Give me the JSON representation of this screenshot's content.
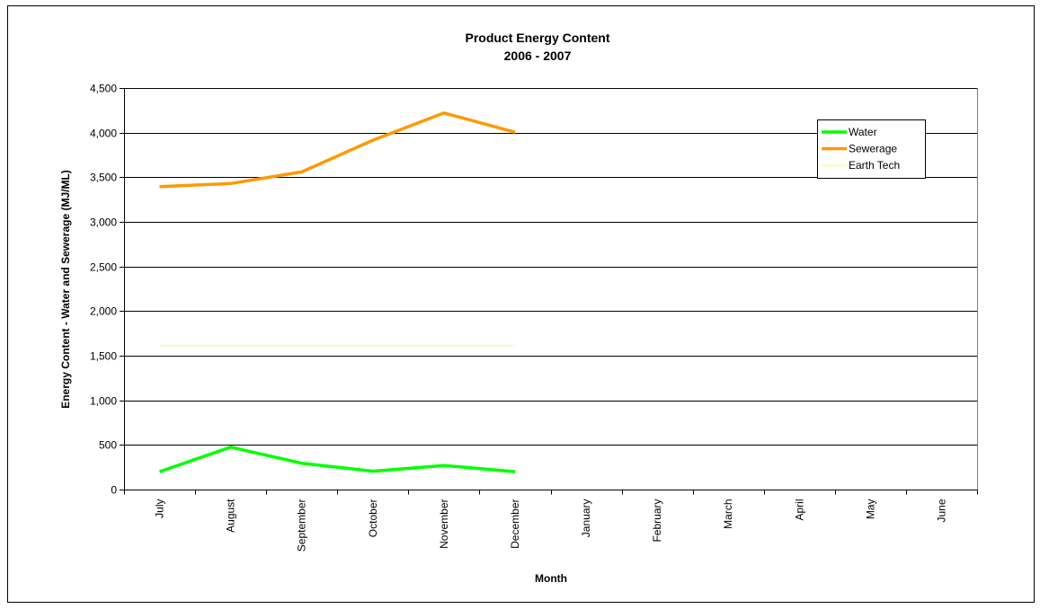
{
  "chart_data": {
    "type": "line",
    "title": "Product Energy Content",
    "subtitle": "2006 - 2007",
    "xlabel": "Month",
    "ylabel": "Energy Content - Water and Sewerage (MJ/ML)",
    "ylim": [
      0,
      4500
    ],
    "ytick_step": 500,
    "ytick_labels": [
      "0",
      "500",
      "1,000",
      "1,500",
      "2,000",
      "2,500",
      "3,000",
      "3,500",
      "4,000",
      "4,500"
    ],
    "grid": true,
    "legend_position": "top-right",
    "categories": [
      "July",
      "August",
      "September",
      "October",
      "November",
      "December",
      "January",
      "February",
      "March",
      "April",
      "May",
      "June"
    ],
    "series": [
      {
        "name": "Water",
        "color": "#00ff00",
        "line_weight": "thick",
        "values": [
          200,
          475,
          295,
          205,
          270,
          200,
          null,
          null,
          null,
          null,
          null,
          null
        ]
      },
      {
        "name": "Sewerage",
        "color": "#ff9900",
        "line_weight": "thick",
        "values": [
          3395,
          3430,
          3560,
          3915,
          4220,
          4005,
          null,
          null,
          null,
          null,
          null,
          null
        ]
      },
      {
        "name": "Earth Tech",
        "color": "#ffff66",
        "line_weight": "thin",
        "values": [
          1615,
          1615,
          1615,
          1615,
          1615,
          1615,
          null,
          null,
          null,
          null,
          null,
          null
        ]
      }
    ]
  }
}
